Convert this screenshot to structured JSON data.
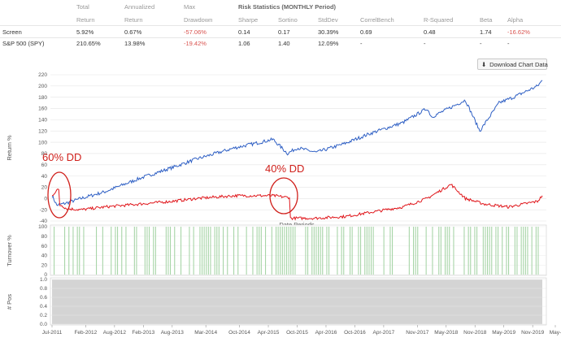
{
  "stats": {
    "headers": {
      "total": "Total",
      "total_sub": "Return",
      "annualized": "Annualized",
      "annualized_sub": "Return",
      "max": "Max",
      "max_sub": "Drawdown",
      "risk_group": "Risk Statistics (MONTHLY Period)",
      "sharpe": "Sharpe",
      "sortino": "Sortino",
      "stddev": "StdDev",
      "correl": "CorrelBench",
      "rsq": "R-Squared",
      "beta": "Beta",
      "alpha": "Alpha"
    },
    "rows": [
      {
        "name": "Screen",
        "total": "5.92%",
        "annualized": "0.67%",
        "max_dd": "-57.06%",
        "sharpe": "0.14",
        "sortino": "0.17",
        "stddev": "30.39%",
        "correl": "0.69",
        "rsq": "0.48",
        "beta": "1.74",
        "alpha": "-16.62%"
      },
      {
        "name": "S&P 500 (SPY)",
        "total": "210.65%",
        "annualized": "13.98%",
        "max_dd": "-19.42%",
        "sharpe": "1.06",
        "sortino": "1.40",
        "stddev": "12.09%",
        "correl": "-",
        "rsq": "-",
        "beta": "-",
        "alpha": "-"
      }
    ]
  },
  "download_button": {
    "label": "Download Chart Data",
    "icon": "download-icon"
  },
  "colors": {
    "benchmark": "#2e5fc4",
    "screen": "#e0161b",
    "turnover": "#a8d5a8",
    "pos": "#d4d4d4",
    "annotation": "#d0201b",
    "negative": "#d9534f"
  },
  "chart_data": [
    {
      "type": "line",
      "ylabel": "Return %",
      "xlabel": "Date Periods",
      "ylim": [
        -40,
        220
      ],
      "yticks": [
        "220",
        "200",
        "180",
        "160",
        "140",
        "120",
        "100",
        "80",
        "60",
        "40",
        "20",
        "0",
        "-20",
        "-40"
      ],
      "grid": true,
      "series": [
        {
          "name": "S&P 500 (SPY)",
          "color": "#2e5fc4",
          "x": [
            "2011-07",
            "2011-08",
            "2011-10",
            "2012-01",
            "2012-06",
            "2013-01",
            "2013-08",
            "2014-01",
            "2014-09",
            "2015-05",
            "2015-08",
            "2015-10",
            "2016-02",
            "2016-08",
            "2017-01",
            "2017-08",
            "2018-01",
            "2018-02",
            "2018-09",
            "2018-12",
            "2019-04",
            "2019-07",
            "2019-12",
            "2020-01"
          ],
          "values": [
            5,
            -12,
            -8,
            0,
            12,
            35,
            55,
            70,
            90,
            105,
            80,
            90,
            82,
            98,
            115,
            135,
            160,
            145,
            175,
            120,
            170,
            180,
            200,
            210
          ]
        },
        {
          "name": "Screen",
          "color": "#e0161b",
          "x": [
            "2011-07",
            "2011-08",
            "2011-09",
            "2011-10",
            "2012-01",
            "2012-06",
            "2013-01",
            "2013-08",
            "2014-01",
            "2014-09",
            "2015-05",
            "2015-08",
            "2015-09",
            "2016-02",
            "2016-08",
            "2017-01",
            "2017-08",
            "2018-01",
            "2018-06",
            "2018-09",
            "2019-01",
            "2019-06",
            "2019-12",
            "2020-01"
          ],
          "values": [
            5,
            15,
            -12,
            -18,
            -20,
            -15,
            -10,
            -5,
            0,
            5,
            5,
            2,
            -35,
            -35,
            -32,
            -25,
            -15,
            0,
            25,
            0,
            -10,
            -15,
            -5,
            5
          ]
        }
      ],
      "annotations": [
        {
          "text": "60% DD"
        },
        {
          "text": "40% DD"
        }
      ]
    },
    {
      "type": "bar",
      "ylabel": "Turnover %",
      "ylim": [
        0,
        100
      ],
      "yticks": [
        "100",
        "80",
        "60",
        "40",
        "20",
        "0"
      ]
    },
    {
      "type": "area",
      "ylabel": "# Pos",
      "ylim": [
        0,
        1.0
      ],
      "yticks": [
        "1.0",
        "0.8",
        "0.6",
        "0.4",
        "0.2",
        "0.0"
      ],
      "x_tick_labels": [
        "Jul-2011",
        "Feb-2012",
        "Aug-2012",
        "Feb-2013",
        "Aug-2013",
        "Mar-2014",
        "Oct-2014",
        "Apr-2015",
        "Oct-2015",
        "Apr-2016",
        "Oct-2016",
        "Apr-2017",
        "Nov-2017",
        "May-2018",
        "Nov-2018",
        "May-2019",
        "Nov-2019",
        "May-"
      ]
    }
  ]
}
